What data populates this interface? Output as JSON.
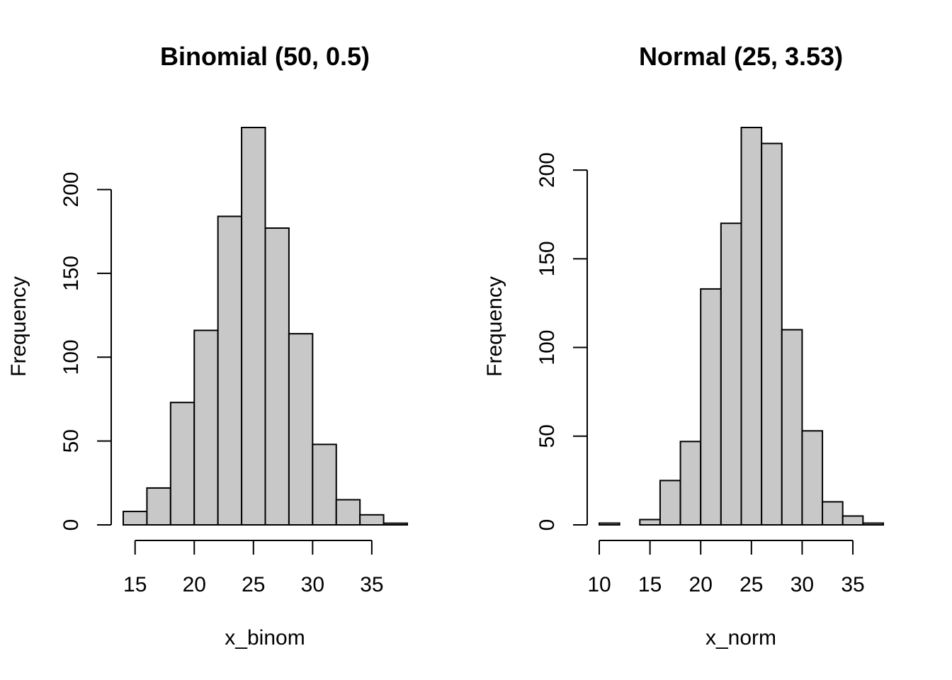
{
  "chart_data": [
    {
      "type": "bar",
      "title": "Binomial (50, 0.5)",
      "xlabel": "x_binom",
      "ylabel": "Frequency",
      "bin_edges": [
        14,
        16,
        18,
        20,
        22,
        24,
        26,
        28,
        30,
        32,
        34,
        36,
        38
      ],
      "values": [
        8,
        22,
        73,
        116,
        184,
        237,
        177,
        114,
        48,
        15,
        6,
        1
      ],
      "xlim": [
        14,
        38
      ],
      "ylim": [
        0,
        237
      ],
      "xticks": [
        15,
        20,
        25,
        30,
        35
      ],
      "yticks": [
        0,
        50,
        100,
        150,
        200
      ],
      "bar_color": "#c8c8c8",
      "grid": false
    },
    {
      "type": "bar",
      "title": "Normal (25, 3.53)",
      "xlabel": "x_norm",
      "ylabel": "Frequency",
      "bin_edges": [
        10,
        12,
        14,
        16,
        18,
        20,
        22,
        24,
        26,
        28,
        30,
        32,
        34,
        36,
        38
      ],
      "values": [
        1,
        0,
        3,
        25,
        47,
        133,
        170,
        224,
        215,
        110,
        53,
        13,
        5,
        1
      ],
      "xlim": [
        10,
        38
      ],
      "ylim": [
        0,
        224
      ],
      "xticks": [
        10,
        15,
        20,
        25,
        30,
        35
      ],
      "yticks": [
        0,
        50,
        100,
        150,
        200
      ],
      "bar_color": "#c8c8c8",
      "grid": false
    }
  ]
}
